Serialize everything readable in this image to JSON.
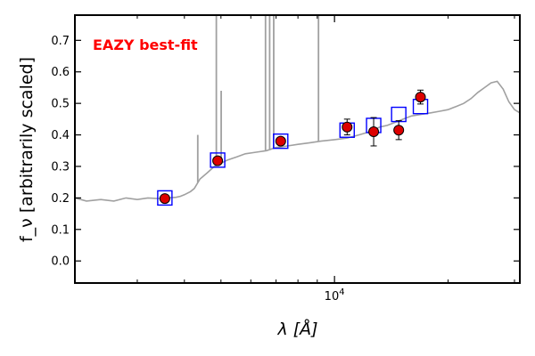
{
  "chart_data": {
    "type": "line",
    "title": "",
    "xlabel": "λ [Å]",
    "ylabel": "f_ν [arbitrarily scaled]",
    "x_scale": "log",
    "xlim": [
      2050,
      31000
    ],
    "ylim": [
      -0.07,
      0.78
    ],
    "x_tick_labels": [
      "10^4"
    ],
    "y_ticks": [
      0.0,
      0.1,
      0.2,
      0.3,
      0.4,
      0.5,
      0.6,
      0.7
    ],
    "y_tick_labels": [
      "0.0",
      "0.1",
      "0.2",
      "0.3",
      "0.4",
      "0.5",
      "0.6",
      "0.7"
    ],
    "grid": false,
    "annotation": {
      "text": "EAZY best-fit",
      "color": "#ff0000",
      "placement": "top-left"
    },
    "series": [
      {
        "kind": "template",
        "color": "#a0a0a0",
        "x": [
          2050,
          2200,
          2400,
          2600,
          2800,
          3000,
          3200,
          3400,
          3600,
          3800,
          3900,
          4000,
          4150,
          4250,
          4400,
          4600,
          4800,
          5000,
          5200,
          5500,
          5800,
          6200,
          6600,
          7000,
          7500,
          8000,
          8600,
          9200,
          10000,
          10800,
          11600,
          12400,
          13200,
          13800,
          14500,
          15200,
          16000,
          17000,
          18000,
          19000,
          20000,
          21000,
          22000,
          23000,
          24000,
          25000,
          26000,
          27000,
          28000,
          29000,
          30000,
          31000
        ],
        "y": [
          0.2,
          0.19,
          0.195,
          0.19,
          0.2,
          0.195,
          0.2,
          0.198,
          0.2,
          0.202,
          0.205,
          0.21,
          0.22,
          0.23,
          0.26,
          0.28,
          0.3,
          0.31,
          0.32,
          0.33,
          0.34,
          0.345,
          0.35,
          0.36,
          0.365,
          0.37,
          0.375,
          0.38,
          0.385,
          0.39,
          0.4,
          0.41,
          0.425,
          0.43,
          0.44,
          0.45,
          0.46,
          0.465,
          0.47,
          0.475,
          0.48,
          0.49,
          0.5,
          0.515,
          0.535,
          0.55,
          0.565,
          0.57,
          0.545,
          0.505,
          0.48,
          0.47
        ],
        "emission_lines": [
          {
            "x": 4340,
            "peak": 0.4
          },
          {
            "x": 4861,
            "peak": 0.78
          },
          {
            "x": 5007,
            "peak": 0.54
          },
          {
            "x": 6563,
            "peak": 0.78
          },
          {
            "x": 6731,
            "peak": 0.78
          },
          {
            "x": 6900,
            "peak": 0.78
          },
          {
            "x": 9069,
            "peak": 0.78
          }
        ]
      },
      {
        "kind": "model_photometry",
        "marker": "open-square",
        "color": "#0000ff",
        "x": [
          3550,
          4900,
          7200,
          10800,
          12700,
          14800,
          16900
        ],
        "y": [
          0.2,
          0.32,
          0.38,
          0.415,
          0.43,
          0.465,
          0.49
        ]
      },
      {
        "kind": "observed_photometry",
        "marker": "filled-circle",
        "color": "#dd0000",
        "x": [
          3550,
          4900,
          7200,
          10800,
          12700,
          14800,
          16900
        ],
        "y": [
          0.198,
          0.318,
          0.38,
          0.425,
          0.41,
          0.415,
          0.52
        ],
        "yerr": [
          0.006,
          0.007,
          0.008,
          0.025,
          0.045,
          0.03,
          0.022
        ]
      }
    ]
  }
}
